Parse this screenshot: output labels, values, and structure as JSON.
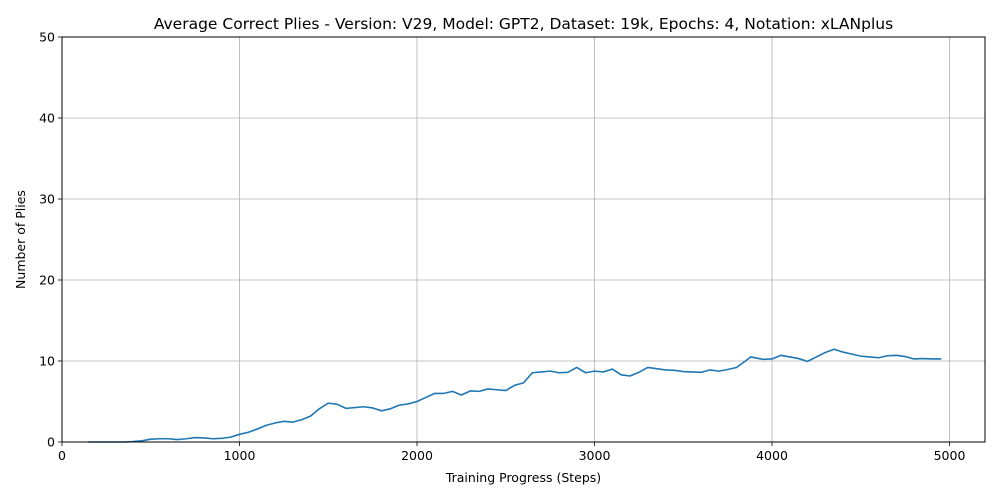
{
  "chart_data": {
    "type": "line",
    "title": "Average Correct Plies - Version: V29, Model: GPT2, Dataset: 19k, Epochs: 4, Notation: xLANplus",
    "xlabel": "Training Progress (Steps)",
    "ylabel": "Number of Plies",
    "xlim": [
      0,
      5200
    ],
    "ylim": [
      0,
      50
    ],
    "xticks": [
      0,
      1000,
      2000,
      3000,
      4000,
      5000
    ],
    "yticks": [
      0,
      10,
      20,
      30,
      40,
      50
    ],
    "grid": true,
    "color": "#1f77b4",
    "series": [
      {
        "x": [
          150,
          200,
          250,
          300,
          350,
          400,
          450,
          500,
          550,
          600,
          650,
          700,
          750,
          800,
          850,
          900,
          950,
          1000,
          1050,
          1100,
          1150,
          1200,
          1250,
          1300,
          1350,
          1400,
          1450,
          1500,
          1550,
          1600,
          1650,
          1700,
          1750,
          1800,
          1850,
          1900,
          1950,
          2000,
          2050,
          2100,
          2150,
          2200,
          2250,
          2300,
          2350,
          2400,
          2450,
          2500,
          2550,
          2600,
          2650,
          2700,
          2750,
          2800,
          2850,
          2900,
          2950,
          3000,
          3050,
          3100,
          3150,
          3200,
          3250,
          3300,
          3350,
          3400,
          3450,
          3500,
          3550,
          3600,
          3650,
          3700,
          3750,
          3800,
          3850,
          3880,
          3950,
          4000,
          4050,
          4100,
          4150,
          4200,
          4250,
          4300,
          4350,
          4400,
          4450,
          4500,
          4550,
          4600,
          4650,
          4700,
          4750,
          4800,
          4850,
          4900,
          4950
        ],
        "values": [
          0.0,
          0.0,
          0.0,
          0.0,
          0.0,
          0.05,
          0.15,
          0.35,
          0.4,
          0.4,
          0.3,
          0.4,
          0.55,
          0.5,
          0.4,
          0.45,
          0.6,
          0.95,
          1.2,
          1.6,
          2.05,
          2.35,
          2.55,
          2.45,
          2.75,
          3.2,
          4.1,
          4.8,
          4.65,
          4.15,
          4.25,
          4.35,
          4.2,
          3.85,
          4.1,
          4.55,
          4.7,
          5.0,
          5.5,
          6.0,
          6.0,
          6.25,
          5.8,
          6.3,
          6.25,
          6.55,
          6.45,
          6.35,
          7.0,
          7.3,
          8.55,
          8.65,
          8.75,
          8.55,
          8.6,
          9.2,
          8.55,
          8.75,
          8.65,
          9.0,
          8.3,
          8.15,
          8.6,
          9.2,
          9.05,
          8.9,
          8.85,
          8.7,
          8.65,
          8.6,
          8.9,
          8.75,
          8.95,
          9.2,
          10.0,
          10.5,
          10.2,
          10.25,
          10.7,
          10.5,
          10.3,
          9.95,
          10.5,
          11.05,
          11.45,
          11.1,
          10.85,
          10.6,
          10.5,
          10.4,
          10.65,
          10.7,
          10.55,
          10.25,
          10.3,
          10.25,
          10.25
        ]
      }
    ]
  }
}
